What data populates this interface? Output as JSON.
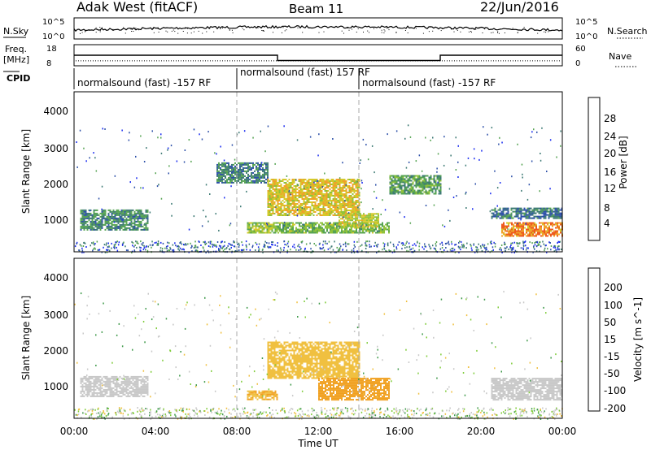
{
  "header": {
    "title": "Adak West (fitACF)",
    "beam": "Beam 11",
    "date": "22/Jun/2016"
  },
  "noise_panel": {
    "left_label": "N.Sky",
    "left_ticks": [
      "10^5",
      "10^0"
    ],
    "right_label": "N.Search",
    "right_ticks": [
      "10^5",
      "10^0"
    ]
  },
  "freq_panel": {
    "left_label_1": "Freq.",
    "left_label_2": "[MHz]",
    "left_ticks": [
      "18",
      "8"
    ],
    "right_label": "Nave",
    "right_ticks": [
      "60",
      "0"
    ],
    "freq_segments": [
      {
        "from_hour": 0.0,
        "to_hour": 10.0,
        "freq": 13.0
      },
      {
        "from_hour": 10.0,
        "to_hour": 18.0,
        "freq": 10.5
      },
      {
        "from_hour": 18.0,
        "to_hour": 24.0,
        "freq": 13.0
      }
    ],
    "nave": 14
  },
  "cpid": {
    "label": "CPID",
    "segments": [
      {
        "text": "normalsound (fast) -157 RF",
        "start_hour": 0
      },
      {
        "text": "normalsound (fast) 157 RF",
        "start_hour": 8
      },
      {
        "text": "normalsound (fast) -157 RF",
        "start_hour": 14
      }
    ]
  },
  "x_axis": {
    "label": "Time UT",
    "ticks": [
      "00:00",
      "04:00",
      "08:00",
      "12:00",
      "16:00",
      "20:00",
      "00:00"
    ]
  },
  "power_panel": {
    "ylabel": "Slant Range [km]",
    "yticks": [
      "1000",
      "2000",
      "3000",
      "4000"
    ],
    "colorbar_label": "Power [dB]",
    "colorbar_ticks": [
      "4",
      "8",
      "12",
      "16",
      "20",
      "24",
      "28"
    ],
    "colors": [
      "#1a2cf0",
      "#2c4fa8",
      "#3d7a74",
      "#55a352",
      "#8fc23b",
      "#d5c92a",
      "#f0a12a",
      "#ee5a1e",
      "#e01a14"
    ]
  },
  "velocity_panel": {
    "ylabel": "Slant Range [km]",
    "yticks": [
      "1000",
      "2000",
      "3000",
      "4000"
    ],
    "colorbar_label": "Velocity [m s^-1]",
    "colorbar_ticks": [
      "200",
      "100",
      "50",
      "15",
      "-15",
      "-50",
      "-100",
      "-200"
    ],
    "colors": [
      "#2a3cc8",
      "#2f6a74",
      "#3f9a4a",
      "#7fcc3a",
      "#c8c8c8",
      "#f0c040",
      "#f0a020",
      "#ee6a16",
      "#e01a14"
    ]
  },
  "chart_data": {
    "type": "heatmap",
    "title": "Adak West (fitACF)",
    "xlabel": "Time UT",
    "ylabel": "Slant Range [km]",
    "xlim_hours": [
      0,
      24
    ],
    "ylim_km": [
      180,
      4600
    ],
    "power_regions": [
      {
        "t0": 0.3,
        "t1": 3.6,
        "r0": 800,
        "r1": 1350,
        "value": 10
      },
      {
        "t0": 7.0,
        "t1": 9.5,
        "r0": 2100,
        "r1": 2650,
        "value": 9
      },
      {
        "t0": 8.5,
        "t1": 10.0,
        "r0": 700,
        "r1": 1000,
        "value": 16
      },
      {
        "t0": 9.5,
        "t1": 14.0,
        "r0": 1200,
        "r1": 2200,
        "value": 20
      },
      {
        "t0": 10.0,
        "t1": 15.5,
        "r0": 700,
        "r1": 1000,
        "value": 14
      },
      {
        "t0": 13.0,
        "t1": 15.0,
        "r0": 850,
        "r1": 1250,
        "value": 18
      },
      {
        "t0": 15.5,
        "t1": 18.0,
        "r0": 1800,
        "r1": 2300,
        "value": 12
      },
      {
        "t0": 20.5,
        "t1": 24.0,
        "r0": 1100,
        "r1": 1400,
        "value": 8
      },
      {
        "t0": 21.0,
        "t1": 24.0,
        "r0": 600,
        "r1": 1000,
        "value": 24
      }
    ],
    "velocity_regions": [
      {
        "t0": 0.3,
        "t1": 3.6,
        "r0": 800,
        "r1": 1350,
        "value": 0
      },
      {
        "t0": 9.5,
        "t1": 14.0,
        "r0": 1300,
        "r1": 2300,
        "value": -20
      },
      {
        "t0": 12.0,
        "t1": 15.5,
        "r0": 700,
        "r1": 1300,
        "value": -80
      },
      {
        "t0": 8.5,
        "t1": 10.0,
        "r0": 700,
        "r1": 950,
        "value": -50
      },
      {
        "t0": 20.5,
        "t1": 24.0,
        "r0": 700,
        "r1": 1300,
        "value": 0
      }
    ]
  }
}
